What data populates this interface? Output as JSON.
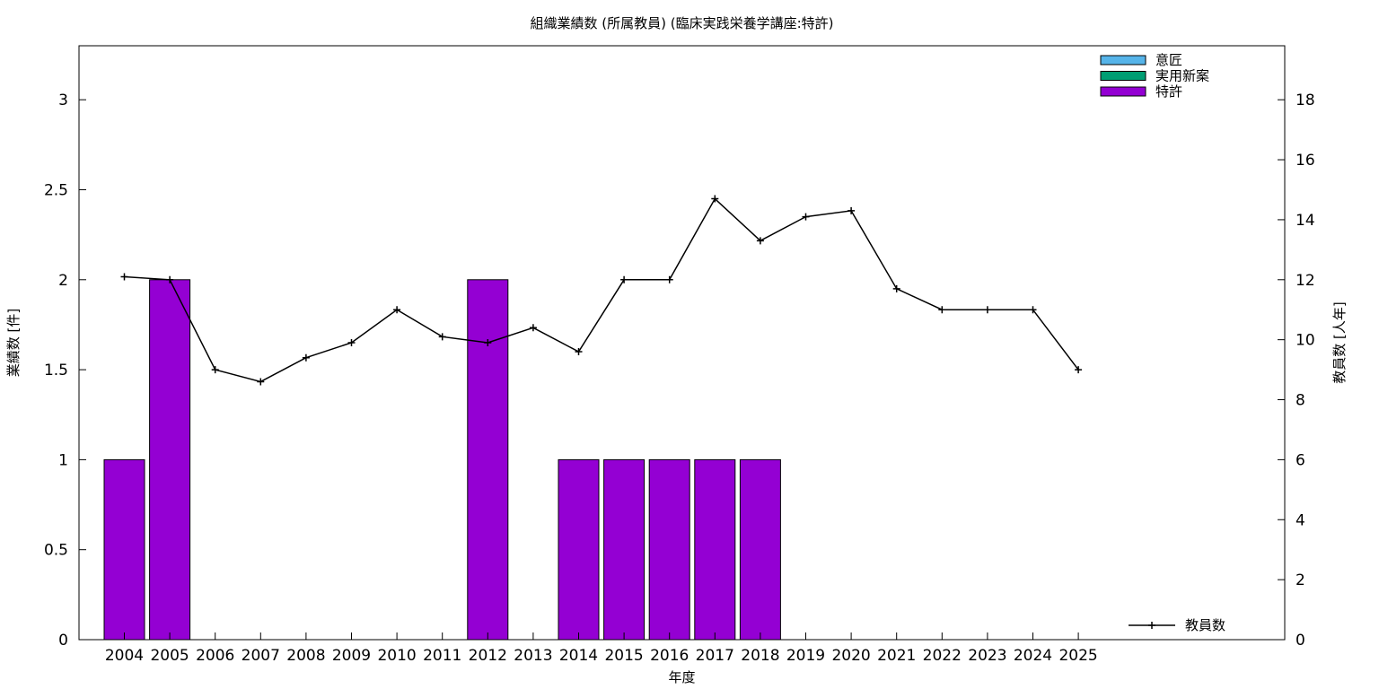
{
  "chart_data": {
    "type": "bar",
    "title": "組織業績数 (所属教員) (臨床実践栄養学講座:特許)",
    "xlabel": "年度",
    "ylabel": "業績数 [件]",
    "y2label": "教員数 [人年]",
    "categories": [
      "2004",
      "2005",
      "2006",
      "2007",
      "2008",
      "2009",
      "2010",
      "2011",
      "2012",
      "2013",
      "2014",
      "2015",
      "2016",
      "2017",
      "2018",
      "2019",
      "2020",
      "2021",
      "2022",
      "2023",
      "2024",
      "2025"
    ],
    "ylim": [
      0,
      3.3
    ],
    "yticks": [
      0,
      0.5,
      1,
      1.5,
      2,
      2.5,
      3
    ],
    "y2lim": [
      0,
      19.8
    ],
    "y2ticks": [
      0,
      2,
      4,
      6,
      8,
      10,
      12,
      14,
      16,
      18
    ],
    "stacked": true,
    "series": [
      {
        "name": "意匠",
        "color": "#56b4e9",
        "values": [
          0,
          0,
          0,
          0,
          0,
          0,
          0,
          0,
          0,
          0,
          0,
          0,
          0,
          0,
          0,
          0,
          0,
          0,
          0,
          0,
          0,
          0
        ]
      },
      {
        "name": "実用新案",
        "color": "#009e73",
        "values": [
          0,
          0,
          0,
          0,
          0,
          0,
          0,
          0,
          0,
          0,
          0,
          0,
          0,
          0,
          0,
          0,
          0,
          0,
          0,
          0,
          0,
          0
        ]
      },
      {
        "name": "特許",
        "color": "#9400d3",
        "values": [
          1,
          2,
          0,
          0,
          0,
          0,
          0,
          0,
          2,
          0,
          1,
          1,
          1,
          1,
          1,
          0,
          0,
          0,
          0,
          0,
          0,
          0
        ]
      }
    ],
    "line_series": {
      "name": "教員数",
      "color": "#000000",
      "axis": "right",
      "values": [
        12.1,
        12.0,
        9.0,
        8.6,
        9.4,
        9.9,
        11.0,
        10.1,
        9.9,
        10.4,
        9.6,
        12.0,
        12.0,
        14.7,
        13.3,
        14.1,
        14.3,
        11.7,
        11.0,
        11.0,
        11.0,
        9.0
      ]
    },
    "legend_position": "top-right",
    "line_legend_position": "bottom-right",
    "grid": false
  }
}
